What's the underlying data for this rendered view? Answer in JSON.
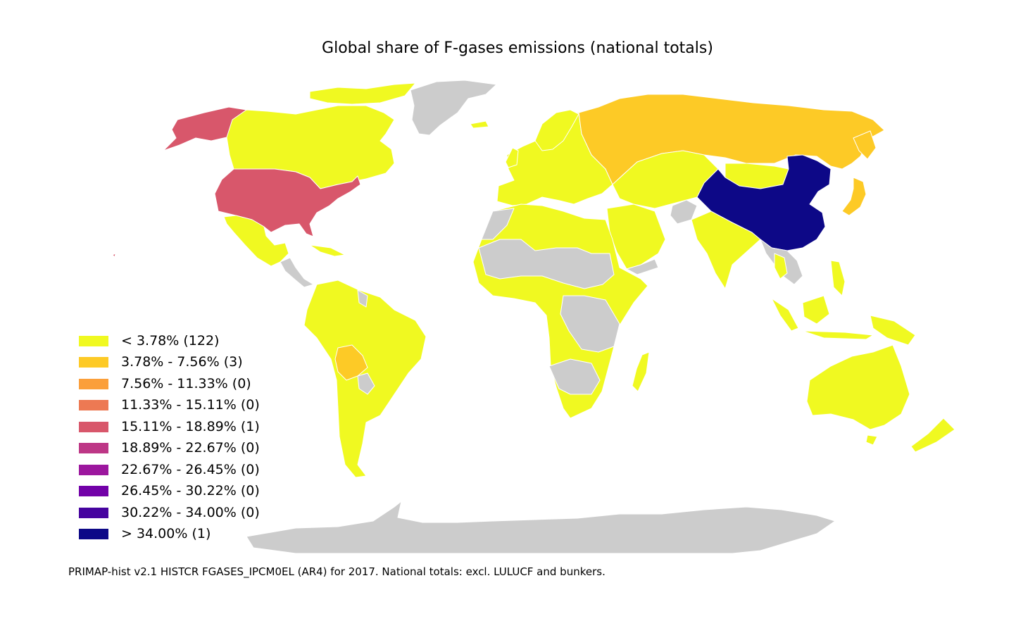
{
  "title": "Global share of F-gases emissions (national totals)",
  "footnote": "PRIMAP-hist v2.1 HISTCR FGASES_IPCM0EL (AR4) for 2017. National totals: excl. LULUCF and bunkers.",
  "colors": {
    "nodata": "#cccccc",
    "bin1": "#f0f921",
    "bin2": "#fdca26",
    "bin3": "#fb9f3a",
    "bin4": "#ed7953",
    "bin5": "#d8576b",
    "bin6": "#bd3786",
    "bin7": "#9c179e",
    "bin8": "#7201a8",
    "bin9": "#46039f",
    "bin10": "#0d0887"
  },
  "legend": [
    {
      "label": "< 3.78% (122)",
      "color": "#f0f921"
    },
    {
      "label": "3.78% - 7.56% (3)",
      "color": "#fdca26"
    },
    {
      "label": "7.56% - 11.33% (0)",
      "color": "#fb9f3a"
    },
    {
      "label": "11.33% - 15.11% (0)",
      "color": "#ed7953"
    },
    {
      "label": "15.11% - 18.89% (1)",
      "color": "#d8576b"
    },
    {
      "label": "18.89% - 22.67% (0)",
      "color": "#bd3786"
    },
    {
      "label": "22.67% - 26.45% (0)",
      "color": "#9c179e"
    },
    {
      "label": "26.45% - 30.22% (0)",
      "color": "#7201a8"
    },
    {
      "label": "30.22% - 34.00% (0)",
      "color": "#46039f"
    },
    {
      "label": "> 34.00% (1)",
      "color": "#0d0887"
    }
  ]
}
